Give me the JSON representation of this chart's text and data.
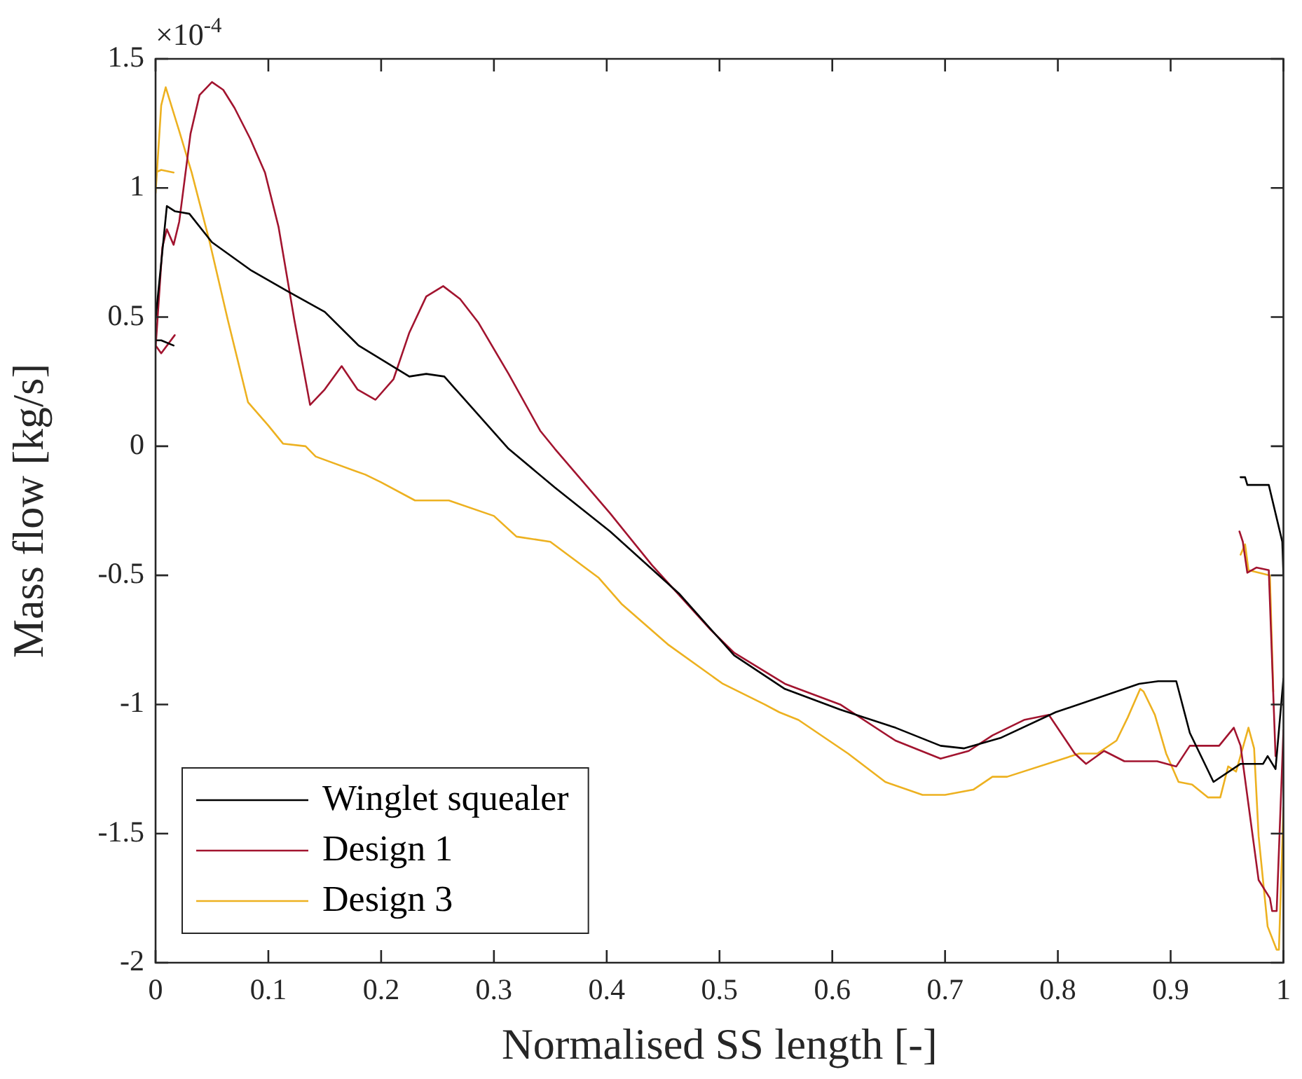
{
  "chart_data": {
    "type": "line",
    "xlabel": "Normalised SS length [-]",
    "ylabel": "Mass flow [kg/s]",
    "annotations": [
      "×10$^{-4}$"
    ],
    "xlim": [
      0,
      1
    ],
    "xticks": [
      0,
      0.1,
      0.2,
      0.3,
      0.4,
      0.5,
      0.6,
      0.7,
      0.8,
      0.9,
      1
    ],
    "ylim": [
      -2,
      1.5
    ],
    "yticks": [
      -2,
      -1.5,
      -1,
      -0.5,
      0,
      0.5,
      1,
      1.5
    ],
    "legend": "bottom left",
    "line_style": "solid",
    "marker": "none",
    "series": [
      {
        "name": "Winglet squealer",
        "color": "#000000",
        "x": [
          0,
          0.005,
          0.016,
          null,
          0,
          0.01,
          0.017,
          0.03,
          0.05,
          0.085,
          0.117,
          0.15,
          0.18,
          0.225,
          0.24,
          0.256,
          0.313,
          0.354,
          0.403,
          0.464,
          0.513,
          0.558,
          0.607,
          0.656,
          0.696,
          0.717,
          0.749,
          0.798,
          0.852,
          0.872,
          0.889,
          0.905,
          0.917,
          0.938,
          0.962,
          0.982,
          0.986,
          0.993,
          1,
          null,
          0.962,
          0.966,
          0.968,
          0.987,
          0.999,
          1
        ],
        "values": [
          0.41,
          0.41,
          0.39,
          null,
          0.49,
          0.93,
          0.91,
          0.9,
          0.79,
          0.68,
          0.6,
          0.52,
          0.39,
          0.27,
          0.28,
          0.27,
          -0.01,
          -0.16,
          -0.33,
          -0.57,
          -0.81,
          -0.94,
          -1.02,
          -1.09,
          -1.16,
          -1.17,
          -1.13,
          -1.03,
          -0.95,
          -0.92,
          -0.91,
          -0.91,
          -1.11,
          -1.3,
          -1.23,
          -1.23,
          -1.2,
          -1.25,
          -0.9,
          null,
          -0.12,
          -0.12,
          -0.15,
          -0.15,
          -0.37,
          -0.5
        ]
      },
      {
        "name": "Design 1",
        "color": "#a2142f",
        "x": [
          0,
          0.005,
          0.017,
          null,
          0,
          0.006,
          0.01,
          0.016,
          0.021,
          0.031,
          0.039,
          0.05,
          0.06,
          0.07,
          0.084,
          0.097,
          0.109,
          0.123,
          0.137,
          0.15,
          0.165,
          0.179,
          0.195,
          0.211,
          0.225,
          0.24,
          0.255,
          0.27,
          0.286,
          0.313,
          0.341,
          0.354,
          0.403,
          0.44,
          0.492,
          0.513,
          0.558,
          0.607,
          0.656,
          0.696,
          0.721,
          0.742,
          0.77,
          0.792,
          0.815,
          0.825,
          0.841,
          0.859,
          0.888,
          0.905,
          0.917,
          0.943,
          0.956,
          0.962,
          0.97,
          0.978,
          0.988,
          0.99,
          0.994,
          1,
          null,
          0.961,
          0.964,
          0.968,
          0.976,
          0.987,
          0.993
        ],
        "values": [
          0.39,
          0.36,
          0.43,
          null,
          0.38,
          0.77,
          0.84,
          0.78,
          0.87,
          1.21,
          1.36,
          1.41,
          1.38,
          1.31,
          1.19,
          1.06,
          0.85,
          0.49,
          0.16,
          0.22,
          0.31,
          0.22,
          0.18,
          0.26,
          0.44,
          0.58,
          0.62,
          0.57,
          0.48,
          0.28,
          0.06,
          -0.01,
          -0.26,
          -0.46,
          -0.71,
          -0.8,
          -0.92,
          -1,
          -1.14,
          -1.21,
          -1.18,
          -1.12,
          -1.06,
          -1.04,
          -1.19,
          -1.23,
          -1.18,
          -1.22,
          -1.22,
          -1.24,
          -1.16,
          -1.16,
          -1.09,
          -1.16,
          -1.42,
          -1.68,
          -1.75,
          -1.8,
          -1.8,
          -1.1,
          null,
          -0.33,
          -0.37,
          -0.49,
          -0.47,
          -0.48,
          -1.2
        ]
      },
      {
        "name": "Design 3",
        "color": "#edb120",
        "x": [
          0,
          0.005,
          0.016,
          null,
          0,
          0.005,
          0.009,
          0.021,
          0.032,
          0.048,
          0.064,
          0.082,
          0.1,
          0.113,
          0.133,
          0.142,
          0.186,
          0.2,
          0.23,
          0.26,
          0.3,
          0.32,
          0.35,
          0.393,
          0.413,
          0.455,
          0.503,
          0.54,
          0.553,
          0.57,
          0.614,
          0.647,
          0.68,
          0.7,
          0.725,
          0.742,
          0.755,
          0.819,
          0.835,
          0.852,
          0.862,
          0.873,
          0.876,
          0.886,
          0.896,
          0.907,
          0.919,
          0.933,
          0.944,
          0.951,
          0.958,
          0.969,
          0.974,
          0.978,
          0.986,
          0.994,
          0.996,
          1,
          null,
          0.962,
          0.966,
          0.969,
          0.988,
          0.991
        ],
        "values": [
          1.06,
          1.07,
          1.06,
          null,
          0.98,
          1.32,
          1.39,
          1.22,
          1.06,
          0.79,
          0.49,
          0.17,
          0.08,
          0.01,
          0,
          -0.04,
          -0.11,
          -0.14,
          -0.21,
          -0.21,
          -0.27,
          -0.35,
          -0.37,
          -0.51,
          -0.61,
          -0.77,
          -0.92,
          -1,
          -1.03,
          -1.06,
          -1.19,
          -1.3,
          -1.35,
          -1.35,
          -1.33,
          -1.28,
          -1.28,
          -1.19,
          -1.19,
          -1.14,
          -1.05,
          -0.94,
          -0.95,
          -1.04,
          -1.19,
          -1.3,
          -1.31,
          -1.36,
          -1.36,
          -1.24,
          -1.26,
          -1.09,
          -1.17,
          -1.51,
          -1.86,
          -1.95,
          -1.95,
          -1.4,
          null,
          -0.42,
          -0.38,
          -0.48,
          -0.5,
          -0.95
        ]
      }
    ]
  }
}
